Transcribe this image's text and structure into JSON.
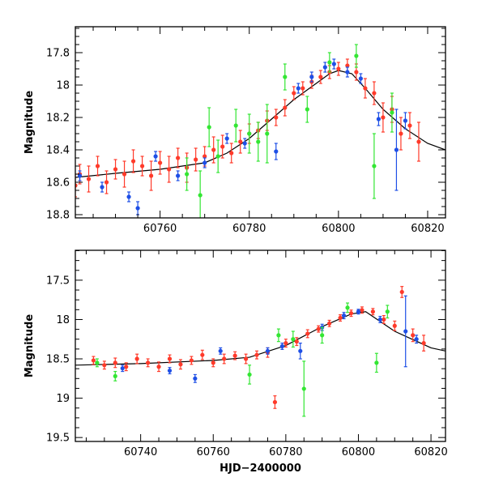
{
  "chart_data": [
    {
      "type": "scatter",
      "panel": "top",
      "xlabel": "",
      "ylabel": "Magnitude",
      "xlim": [
        60741,
        60824
      ],
      "ylim": [
        18.82,
        17.64
      ],
      "y_inverted": true,
      "x_ticks": [
        60760,
        60780,
        60800,
        60820
      ],
      "x_tick_labels": [
        "60760",
        "60780",
        "60800",
        "60820"
      ],
      "y_ticks": [
        17.8,
        18.0,
        18.2,
        18.4,
        18.6,
        18.8
      ],
      "y_tick_labels": [
        "17.8",
        "18",
        "18.2",
        "18.4",
        "18.6",
        "18.8"
      ],
      "grid": false,
      "model": {
        "x": [
          60741,
          60750,
          60760,
          60770,
          60775,
          60780,
          60785,
          60790,
          60795,
          60798,
          60800,
          60803,
          60806,
          60810,
          60815,
          60820,
          60824
        ],
        "y": [
          18.57,
          18.545,
          18.52,
          18.48,
          18.42,
          18.33,
          18.21,
          18.09,
          17.99,
          17.93,
          17.91,
          17.93,
          18.02,
          18.15,
          18.27,
          18.36,
          18.4
        ]
      },
      "series": [
        {
          "color": "#ff3a2a",
          "x": [
            60741,
            60742,
            60744,
            60746,
            60748,
            60750,
            60752,
            60754,
            60756,
            60758,
            60760,
            60762,
            60764,
            60766,
            60768,
            60770,
            60772,
            60774,
            60776,
            60778,
            60780,
            60782,
            60784,
            60786,
            60788,
            60790,
            60792,
            60794,
            60796,
            60798,
            60800,
            60802,
            60804,
            60806,
            60808,
            60810,
            60812,
            60814,
            60816,
            60818
          ],
          "y": [
            18.62,
            18.55,
            18.58,
            18.5,
            18.6,
            18.52,
            18.55,
            18.47,
            18.5,
            18.56,
            18.48,
            18.52,
            18.45,
            18.51,
            18.46,
            18.44,
            18.4,
            18.38,
            18.42,
            18.35,
            18.3,
            18.28,
            18.22,
            18.2,
            18.14,
            18.05,
            18.02,
            17.98,
            17.95,
            17.92,
            17.9,
            17.88,
            17.92,
            18.02,
            18.05,
            18.2,
            18.15,
            18.3,
            18.25,
            18.35
          ],
          "err": [
            0.07,
            0.06,
            0.08,
            0.06,
            0.07,
            0.06,
            0.08,
            0.07,
            0.06,
            0.09,
            0.07,
            0.08,
            0.06,
            0.09,
            0.07,
            0.06,
            0.08,
            0.07,
            0.06,
            0.07,
            0.06,
            0.05,
            0.06,
            0.05,
            0.05,
            0.04,
            0.04,
            0.04,
            0.04,
            0.04,
            0.04,
            0.04,
            0.05,
            0.06,
            0.07,
            0.09,
            0.08,
            0.1,
            0.08,
            0.12
          ]
        },
        {
          "color": "#1e4fe6",
          "x": [
            60742,
            60747,
            60753,
            60755,
            60759,
            60764,
            60770,
            60775,
            60779,
            60786,
            60791,
            60794,
            60797,
            60799,
            60802,
            60805,
            60809,
            60813,
            60815
          ],
          "y": [
            18.56,
            18.63,
            18.69,
            18.76,
            18.44,
            18.56,
            18.48,
            18.33,
            18.36,
            18.41,
            18.02,
            17.95,
            17.89,
            17.87,
            17.92,
            17.96,
            18.21,
            18.4,
            18.22
          ],
          "err": [
            0.03,
            0.03,
            0.03,
            0.04,
            0.03,
            0.03,
            0.03,
            0.03,
            0.03,
            0.05,
            0.03,
            0.03,
            0.03,
            0.03,
            0.03,
            0.03,
            0.04,
            0.25,
            0.05
          ]
        },
        {
          "color": "#33e633",
          "x": [
            60766,
            60769,
            60771,
            60773,
            60777,
            60780,
            60782,
            60784,
            60788,
            60793,
            60798,
            60804,
            60808,
            60812
          ],
          "y": [
            18.55,
            18.68,
            18.26,
            18.44,
            18.25,
            18.3,
            18.35,
            18.3,
            17.95,
            18.15,
            17.86,
            17.82,
            18.5,
            18.17
          ],
          "err": [
            0.1,
            0.15,
            0.12,
            0.1,
            0.1,
            0.12,
            0.12,
            0.18,
            0.08,
            0.08,
            0.06,
            0.07,
            0.2,
            0.12
          ]
        }
      ]
    },
    {
      "type": "scatter",
      "panel": "bottom",
      "xlabel": "HJD−2400000",
      "ylabel": "Magnitude",
      "xlim": [
        60722,
        60824
      ],
      "ylim": [
        19.55,
        17.12
      ],
      "y_inverted": true,
      "x_ticks": [
        60740,
        60760,
        60780,
        60800,
        60820
      ],
      "x_tick_labels": [
        "60740",
        "60760",
        "60780",
        "60800",
        "60820"
      ],
      "y_ticks": [
        17.5,
        18.0,
        18.5,
        19.0,
        19.5
      ],
      "y_tick_labels": [
        "17.5",
        "18",
        "18.5",
        "19",
        "19.5"
      ],
      "grid": false,
      "model": {
        "x": [
          60722,
          60740,
          60760,
          60770,
          60780,
          60790,
          60798,
          60802,
          60810,
          60820,
          60824
        ],
        "y": [
          18.58,
          18.56,
          18.52,
          18.48,
          18.33,
          18.09,
          17.93,
          17.9,
          18.15,
          18.36,
          18.4
        ]
      },
      "series": [
        {
          "color": "#ff3a2a",
          "x": [
            60727,
            60730,
            60733,
            60736,
            60739,
            60742,
            60745,
            60748,
            60751,
            60754,
            60757,
            60760,
            60763,
            60766,
            60769,
            60772,
            60775,
            60777,
            60780,
            60783,
            60786,
            60789,
            60792,
            60795,
            60798,
            60801,
            60804,
            60807,
            60810,
            60812,
            60815,
            60818
          ],
          "y": [
            18.52,
            18.58,
            18.55,
            18.6,
            18.5,
            18.55,
            18.6,
            18.5,
            18.57,
            18.52,
            18.45,
            18.55,
            18.5,
            18.46,
            18.5,
            18.45,
            18.42,
            19.05,
            18.3,
            18.28,
            18.18,
            18.12,
            18.05,
            17.98,
            17.92,
            17.88,
            17.9,
            18.0,
            18.08,
            17.65,
            18.2,
            18.3
          ],
          "err": [
            0.05,
            0.05,
            0.06,
            0.05,
            0.06,
            0.05,
            0.06,
            0.05,
            0.06,
            0.05,
            0.06,
            0.05,
            0.06,
            0.05,
            0.06,
            0.05,
            0.06,
            0.08,
            0.05,
            0.05,
            0.05,
            0.04,
            0.04,
            0.04,
            0.04,
            0.04,
            0.04,
            0.05,
            0.06,
            0.07,
            0.08,
            0.1
          ]
        },
        {
          "color": "#1e4fe6",
          "x": [
            60735,
            60748,
            60755,
            60762,
            60775,
            60779,
            60784,
            60790,
            60796,
            60800,
            60806,
            60813,
            60816
          ],
          "y": [
            18.62,
            18.65,
            18.75,
            18.4,
            18.4,
            18.34,
            18.4,
            18.1,
            17.95,
            17.9,
            18.0,
            18.15,
            18.25
          ],
          "err": [
            0.04,
            0.04,
            0.05,
            0.04,
            0.04,
            0.04,
            0.1,
            0.04,
            0.04,
            0.03,
            0.04,
            0.45,
            0.05
          ]
        },
        {
          "color": "#33e633",
          "x": [
            60728,
            60733,
            60770,
            60778,
            60782,
            60785,
            60790,
            60797,
            60805,
            60808
          ],
          "y": [
            18.55,
            18.72,
            18.7,
            18.2,
            18.25,
            18.88,
            18.2,
            17.85,
            18.55,
            17.9
          ],
          "err": [
            0.05,
            0.06,
            0.12,
            0.08,
            0.1,
            0.35,
            0.1,
            0.06,
            0.12,
            0.08
          ]
        }
      ]
    }
  ]
}
